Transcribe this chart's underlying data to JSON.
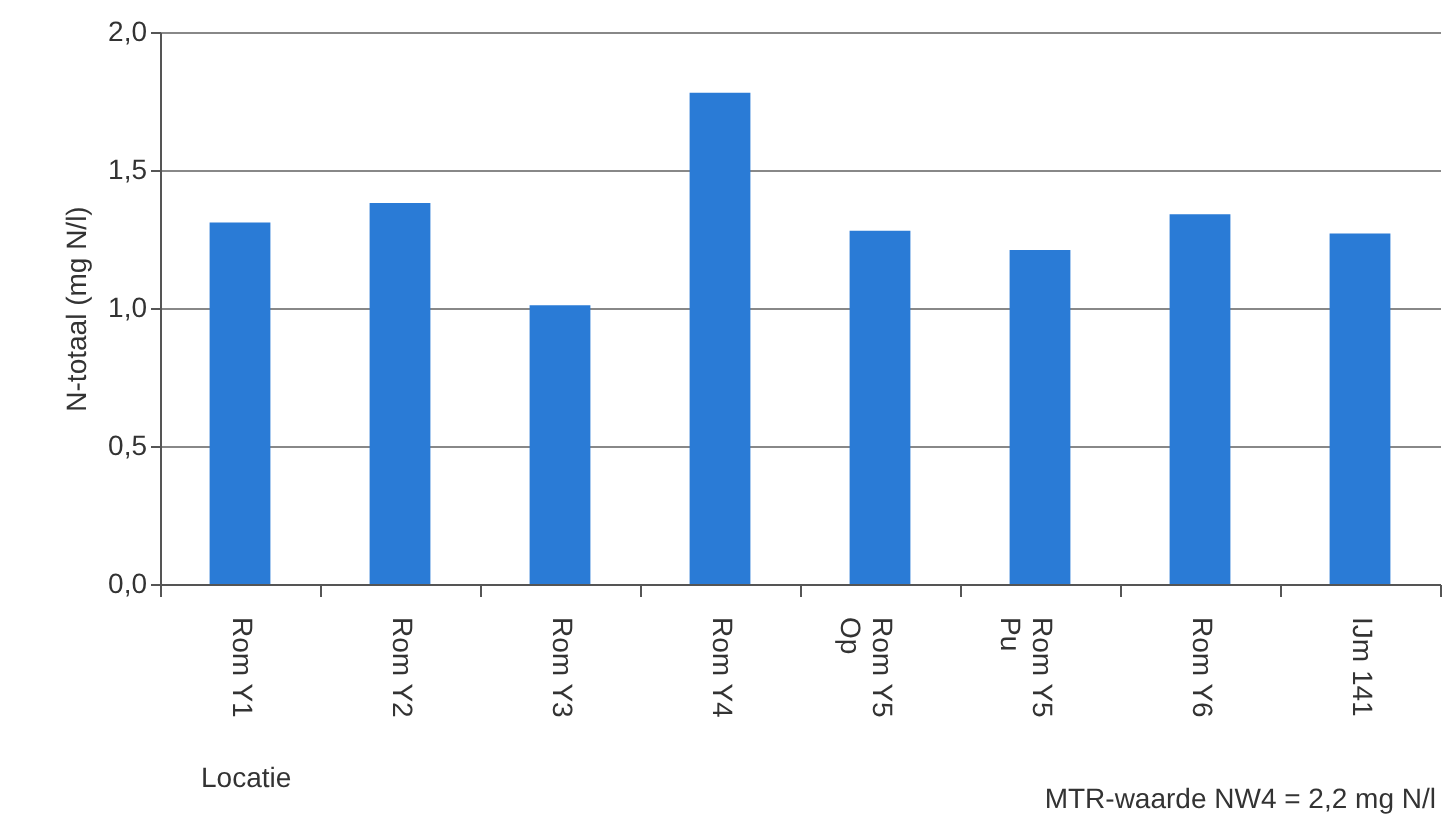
{
  "chart_data": {
    "type": "bar",
    "xlabel": "Locatie",
    "ylabel": "N-totaal (mg N/l)",
    "categories": [
      "Rom Y1",
      "Rom Y2",
      "Rom Y3",
      "Rom Y4",
      "Rom Y5\nOp",
      "Rom Y5\nPu",
      "Rom Y6",
      "IJm 141"
    ],
    "values": [
      1.31,
      1.38,
      1.01,
      1.78,
      1.28,
      1.21,
      1.34,
      1.27
    ],
    "color": "#2a7bd6",
    "ylim": [
      0,
      2
    ],
    "yticks": [
      {
        "value": 0,
        "label": "0,0"
      },
      {
        "value": 0.5,
        "label": "0,5"
      },
      {
        "value": 1,
        "label": "1,0"
      },
      {
        "value": 1.5,
        "label": "1,5"
      },
      {
        "value": 2,
        "label": "2,0"
      }
    ],
    "grid": "y",
    "annotations": [
      "MTR-waarde NW4 = 2,2 mg N/l"
    ]
  }
}
